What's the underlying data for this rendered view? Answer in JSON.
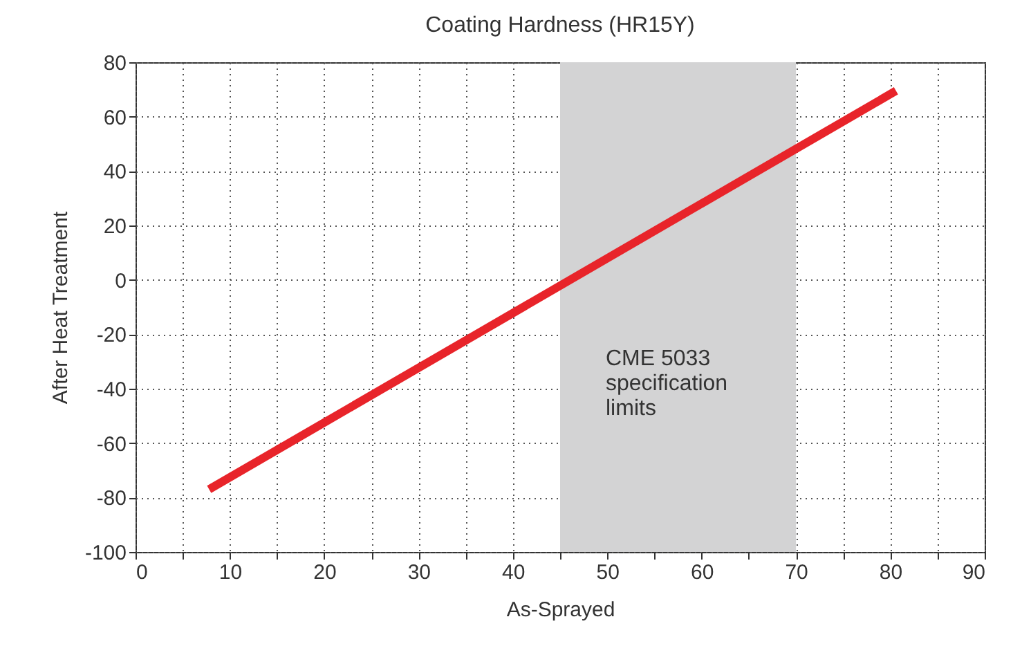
{
  "chart_data": {
    "type": "line",
    "title": "Coating Hardness (HR15Y)",
    "xlabel": "As-Sprayed",
    "ylabel": "After Heat Treatment",
    "x": [
      7.8,
      80.6
    ],
    "series": [
      {
        "color": "#e8242a",
        "values": [
          -77,
          69.5
        ]
      }
    ],
    "xlim": [
      0,
      90
    ],
    "xticks": [
      0,
      {
        "value": 5,
        "label": null
      },
      10,
      {
        "value": 15,
        "label": null
      },
      20,
      {
        "value": 25,
        "label": null
      },
      30,
      {
        "value": 35,
        "label": null
      },
      40,
      {
        "value": 45,
        "label": null
      },
      50,
      {
        "value": 55,
        "label": null
      },
      60,
      {
        "value": 65,
        "label": null
      },
      70,
      {
        "value": 75,
        "label": null
      },
      80,
      {
        "value": 85,
        "label": null
      },
      90
    ],
    "ylim": [
      -100,
      80
    ],
    "yticks": [
      -100,
      -80,
      -60,
      -40,
      -20,
      0,
      20,
      40,
      60,
      80
    ],
    "bands": [
      {
        "axis": "x",
        "from": 45,
        "to": 70,
        "label": "CME 5033\nspecification\nlimits",
        "color": "#d3d3d4"
      }
    ],
    "grid": true,
    "line_style": "solid",
    "marker": "none"
  }
}
